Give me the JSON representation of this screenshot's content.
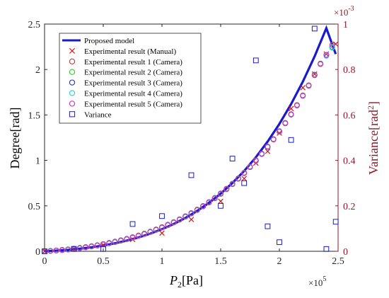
{
  "chart_data": {
    "type": "scatter",
    "x_axis": {
      "label_var": "P",
      "label_sub": "2",
      "label_unit": "[Pa]",
      "range": [
        0,
        250000
      ],
      "ticks": [
        0,
        50000,
        100000,
        150000,
        200000,
        250000
      ],
      "tick_labels": [
        "0",
        "0.5",
        "1",
        "1.5",
        "2",
        "2.5"
      ],
      "multiplier_base": "×10",
      "multiplier_exp": "5"
    },
    "y_axis_left": {
      "label": "Degree[rad]",
      "range": [
        0,
        2.5
      ],
      "ticks": [
        0,
        0.5,
        1,
        1.5,
        2,
        2.5
      ],
      "tick_labels": [
        "0",
        "0.5",
        "1",
        "1.5",
        "2",
        "2.5"
      ]
    },
    "y_axis_right": {
      "label_base": "Variance[rad",
      "label_sup": "2",
      "label_end": "]",
      "range": [
        0,
        0.001
      ],
      "ticks": [
        0,
        0.0002,
        0.0004,
        0.0006,
        0.0008,
        0.001
      ],
      "tick_labels": [
        "0",
        "0.2",
        "0.4",
        "0.6",
        "0.8",
        "1"
      ],
      "multiplier_base": "×10",
      "multiplier_exp": "-3",
      "color": "#8b1a2b"
    },
    "series": [
      {
        "name": "Proposed model",
        "kind": "line",
        "axis": "left",
        "color": "#1a1acc",
        "x": [
          0,
          10000,
          20000,
          30000,
          40000,
          50000,
          60000,
          70000,
          80000,
          90000,
          100000,
          110000,
          120000,
          130000,
          140000,
          150000,
          160000,
          170000,
          180000,
          190000,
          200000,
          210000,
          220000,
          230000,
          240000,
          248000
        ],
        "y": [
          0,
          0.007,
          0.016,
          0.028,
          0.044,
          0.064,
          0.088,
          0.117,
          0.152,
          0.194,
          0.243,
          0.3,
          0.367,
          0.444,
          0.533,
          0.634,
          0.751,
          0.884,
          1.035,
          1.207,
          1.401,
          1.62,
          1.867,
          2.144,
          2.455,
          2.17
        ]
      },
      {
        "name": "Experimental result (Manual)",
        "kind": "x-marker",
        "axis": "left",
        "color": "#cc1a1a",
        "x": [
          0,
          25000,
          50000,
          75000,
          100000,
          125000,
          150000,
          170000,
          180000,
          190000,
          200000,
          210000,
          220000,
          230000,
          240000,
          248000
        ],
        "y": [
          0.0,
          0.03,
          0.07,
          0.13,
          0.2,
          0.35,
          0.55,
          0.8,
          0.97,
          1.1,
          1.3,
          1.57,
          1.8,
          1.95,
          2.17,
          2.28
        ]
      },
      {
        "name": "Experimental result 1 (Camera)",
        "kind": "circle",
        "axis": "left",
        "color": "#cc3333",
        "x": [
          0,
          5000,
          10000,
          15000,
          20000,
          25000,
          30000,
          35000,
          40000,
          45000,
          50000,
          55000,
          60000,
          65000,
          70000,
          75000,
          80000,
          85000,
          90000,
          95000,
          100000,
          105000,
          110000,
          115000,
          120000,
          125000,
          130000,
          135000,
          140000,
          145000,
          150000,
          155000,
          160000,
          165000,
          170000,
          175000,
          180000,
          185000,
          190000,
          195000,
          200000,
          205000,
          210000,
          215000,
          220000,
          225000,
          230000,
          235000,
          240000,
          245000
        ],
        "y": [
          0,
          0.005,
          0.01,
          0.016,
          0.022,
          0.03,
          0.038,
          0.047,
          0.057,
          0.068,
          0.08,
          0.093,
          0.107,
          0.122,
          0.138,
          0.156,
          0.175,
          0.195,
          0.217,
          0.241,
          0.266,
          0.293,
          0.322,
          0.353,
          0.386,
          0.421,
          0.459,
          0.499,
          0.542,
          0.588,
          0.637,
          0.689,
          0.744,
          0.803,
          0.865,
          0.931,
          1.001,
          1.075,
          1.153,
          1.235,
          1.322,
          1.413,
          1.509,
          1.61,
          1.716,
          1.827,
          1.944,
          2.066,
          2.16,
          2.25
        ]
      },
      {
        "name": "Experimental result 2 (Camera)",
        "kind": "circle",
        "axis": "left",
        "color": "#33cc33",
        "x": [
          0,
          5000,
          10000,
          15000,
          20000,
          25000,
          30000,
          35000,
          40000,
          45000,
          50000,
          55000,
          60000,
          65000,
          70000,
          75000,
          80000,
          85000,
          90000,
          95000,
          100000,
          105000,
          110000,
          115000,
          120000,
          125000,
          130000,
          135000,
          140000,
          145000,
          150000,
          155000,
          160000,
          165000,
          170000,
          175000,
          180000,
          185000,
          190000,
          195000,
          200000,
          205000,
          210000,
          215000,
          220000,
          225000,
          230000,
          235000,
          240000,
          245000
        ],
        "y": [
          0,
          0.005,
          0.009,
          0.015,
          0.021,
          0.028,
          0.036,
          0.045,
          0.055,
          0.066,
          0.078,
          0.09,
          0.104,
          0.119,
          0.135,
          0.153,
          0.172,
          0.192,
          0.214,
          0.238,
          0.263,
          0.29,
          0.319,
          0.35,
          0.383,
          0.418,
          0.456,
          0.496,
          0.539,
          0.585,
          0.634,
          0.686,
          0.741,
          0.8,
          0.862,
          0.928,
          0.998,
          1.072,
          1.15,
          1.232,
          1.319,
          1.41,
          1.506,
          1.607,
          1.713,
          1.824,
          1.94,
          2.062,
          2.16,
          2.25
        ]
      },
      {
        "name": "Experimental result 3 (Camera)",
        "kind": "circle",
        "axis": "left",
        "color": "#2a2acc",
        "x": [
          0,
          5000,
          10000,
          15000,
          20000,
          25000,
          30000,
          35000,
          40000,
          45000,
          50000,
          55000,
          60000,
          65000,
          70000,
          75000,
          80000,
          85000,
          90000,
          95000,
          100000,
          105000,
          110000,
          115000,
          120000,
          125000,
          130000,
          135000,
          140000,
          145000,
          150000,
          155000,
          160000,
          165000,
          170000,
          175000,
          180000,
          185000,
          190000,
          195000,
          200000,
          205000,
          210000,
          215000,
          220000,
          225000,
          230000,
          235000,
          240000,
          245000
        ],
        "y": [
          0,
          0.004,
          0.009,
          0.014,
          0.02,
          0.027,
          0.035,
          0.044,
          0.054,
          0.065,
          0.077,
          0.089,
          0.103,
          0.118,
          0.134,
          0.152,
          0.171,
          0.191,
          0.213,
          0.237,
          0.262,
          0.289,
          0.318,
          0.349,
          0.382,
          0.417,
          0.455,
          0.495,
          0.538,
          0.584,
          0.633,
          0.685,
          0.74,
          0.799,
          0.861,
          0.927,
          0.997,
          1.071,
          1.149,
          1.231,
          1.318,
          1.409,
          1.505,
          1.606,
          1.712,
          1.823,
          1.939,
          2.061,
          2.16,
          2.24
        ]
      },
      {
        "name": "Experimental result 4 (Camera)",
        "kind": "circle",
        "axis": "left",
        "color": "#33cccc",
        "x": [
          0,
          5000,
          10000,
          15000,
          20000,
          25000,
          30000,
          35000,
          40000,
          45000,
          50000,
          55000,
          60000,
          65000,
          70000,
          75000,
          80000,
          85000,
          90000,
          95000,
          100000,
          105000,
          110000,
          115000,
          120000,
          125000,
          130000,
          135000,
          140000,
          145000,
          150000,
          155000,
          160000,
          165000,
          170000,
          175000,
          180000,
          185000,
          190000,
          195000,
          200000,
          205000,
          210000,
          215000,
          220000,
          225000,
          230000,
          235000,
          240000,
          245000
        ],
        "y": [
          0,
          0.004,
          0.008,
          0.013,
          0.019,
          0.026,
          0.034,
          0.043,
          0.053,
          0.064,
          0.076,
          0.088,
          0.102,
          0.117,
          0.133,
          0.151,
          0.17,
          0.19,
          0.212,
          0.236,
          0.261,
          0.288,
          0.317,
          0.348,
          0.381,
          0.416,
          0.454,
          0.494,
          0.537,
          0.583,
          0.632,
          0.684,
          0.739,
          0.798,
          0.86,
          0.926,
          0.996,
          1.07,
          1.148,
          1.23,
          1.317,
          1.408,
          1.504,
          1.605,
          1.711,
          1.822,
          1.938,
          2.06,
          2.15,
          2.24
        ]
      },
      {
        "name": "Experimental result 5 (Camera)",
        "kind": "circle",
        "axis": "left",
        "color": "#cc33cc",
        "x": [
          0,
          5000,
          10000,
          15000,
          20000,
          25000,
          30000,
          35000,
          40000,
          45000,
          50000,
          55000,
          60000,
          65000,
          70000,
          75000,
          80000,
          85000,
          90000,
          95000,
          100000,
          105000,
          110000,
          115000,
          120000,
          125000,
          130000,
          135000,
          140000,
          145000,
          150000,
          155000,
          160000,
          165000,
          170000,
          175000,
          180000,
          185000,
          190000,
          195000,
          200000,
          205000,
          210000,
          215000,
          220000,
          225000,
          230000,
          235000,
          240000,
          245000
        ],
        "y": [
          0,
          0.003,
          0.007,
          0.012,
          0.018,
          0.025,
          0.033,
          0.042,
          0.052,
          0.063,
          0.075,
          0.087,
          0.101,
          0.116,
          0.132,
          0.15,
          0.169,
          0.189,
          0.211,
          0.235,
          0.26,
          0.287,
          0.316,
          0.347,
          0.38,
          0.415,
          0.453,
          0.493,
          0.536,
          0.582,
          0.631,
          0.683,
          0.738,
          0.797,
          0.859,
          0.925,
          0.995,
          1.069,
          1.147,
          1.229,
          1.316,
          1.407,
          1.503,
          1.604,
          1.71,
          1.821,
          1.937,
          2.059,
          2.16,
          2.27
        ]
      },
      {
        "name": "Variance",
        "kind": "square",
        "axis": "right",
        "color": "#1a1acc",
        "x": [
          0,
          25000,
          50000,
          75000,
          100000,
          125000,
          150000,
          160000,
          170000,
          180000,
          190000,
          200000,
          210000,
          230000,
          240000,
          248000
        ],
        "y": [
          0.0,
          1e-05,
          1e-05,
          0.00012,
          0.000155,
          0.000335,
          0.0002,
          0.000408,
          0.0003,
          0.00084,
          0.00011,
          4e-05,
          0.00049,
          0.00098,
          1e-05,
          0.00013
        ]
      }
    ],
    "legend": "top-left",
    "grid": false
  }
}
